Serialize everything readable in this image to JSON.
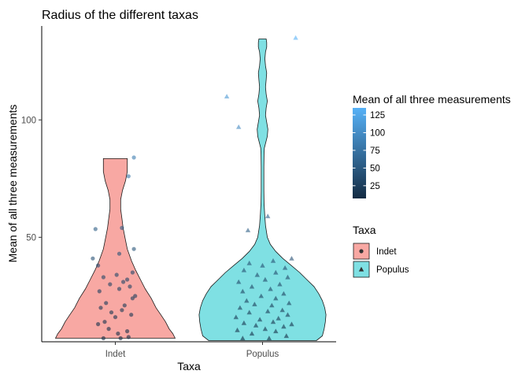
{
  "chart_data": {
    "type": "violin",
    "title": "Radius of the different taxas",
    "xlabel": "Taxa",
    "ylabel": "Mean of all three measurements",
    "categories": [
      "Indet",
      "Populus"
    ],
    "y_ticks": [
      50,
      100
    ],
    "ylim": [
      5.5,
      140
    ],
    "grid": false,
    "legend_position": "right",
    "colors": {
      "Indet": "#F8A8A3",
      "Populus": "#7FE0E3",
      "outline": "#1a1a1a",
      "gradient_low": "#132B43",
      "gradient_high": "#56B1F7"
    },
    "violins": [
      {
        "name": "Indet",
        "profile": [
          [
            7,
            1.0
          ],
          [
            9,
            0.96
          ],
          [
            11,
            0.9
          ],
          [
            14,
            0.84
          ],
          [
            17,
            0.76
          ],
          [
            20,
            0.68
          ],
          [
            24,
            0.6
          ],
          [
            28,
            0.5
          ],
          [
            32,
            0.42
          ],
          [
            36,
            0.34
          ],
          [
            40,
            0.27
          ],
          [
            45,
            0.2
          ],
          [
            50,
            0.16
          ],
          [
            54,
            0.13
          ],
          [
            58,
            0.11
          ],
          [
            62,
            0.09
          ],
          [
            66,
            0.09
          ],
          [
            70,
            0.12
          ],
          [
            74,
            0.17
          ],
          [
            78,
            0.2
          ],
          [
            81,
            0.2
          ],
          [
            83.5,
            0.2
          ]
        ]
      },
      {
        "name": "Populus",
        "profile": [
          [
            6,
            0.9
          ],
          [
            8,
            1.0
          ],
          [
            11,
            1.03
          ],
          [
            14,
            1.05
          ],
          [
            17,
            1.06
          ],
          [
            20,
            1.04
          ],
          [
            23,
            1.0
          ],
          [
            26,
            0.94
          ],
          [
            29,
            0.86
          ],
          [
            32,
            0.74
          ],
          [
            35,
            0.62
          ],
          [
            38,
            0.48
          ],
          [
            41,
            0.34
          ],
          [
            44,
            0.22
          ],
          [
            47,
            0.13
          ],
          [
            50,
            0.08
          ],
          [
            55,
            0.05
          ],
          [
            60,
            0.035
          ],
          [
            65,
            0.025
          ],
          [
            70,
            0.022
          ],
          [
            75,
            0.022
          ],
          [
            80,
            0.022
          ],
          [
            85,
            0.025
          ],
          [
            88,
            0.03
          ],
          [
            90,
            0.05
          ],
          [
            93,
            0.08
          ],
          [
            96,
            0.09
          ],
          [
            99,
            0.07
          ],
          [
            102,
            0.05
          ],
          [
            105,
            0.06
          ],
          [
            108,
            0.08
          ],
          [
            111,
            0.06
          ],
          [
            114,
            0.05
          ],
          [
            117,
            0.06
          ],
          [
            120,
            0.07
          ],
          [
            123,
            0.05
          ],
          [
            126,
            0.04
          ],
          [
            129,
            0.05
          ],
          [
            131,
            0.07
          ],
          [
            133,
            0.07
          ],
          [
            134.5,
            0.06
          ]
        ]
      }
    ],
    "points": [
      {
        "taxa": "Indet",
        "shape": "circle",
        "data": [
          [
            -0.09,
            7
          ],
          [
            0.04,
            7
          ],
          [
            0.1,
            7.5
          ],
          [
            0.02,
            9
          ],
          [
            0.09,
            10
          ],
          [
            -0.05,
            11
          ],
          [
            -0.13,
            13
          ],
          [
            -0.08,
            14
          ],
          [
            0.0,
            16
          ],
          [
            0.12,
            17
          ],
          [
            -0.03,
            18
          ],
          [
            0.05,
            19
          ],
          [
            -0.11,
            20
          ],
          [
            0.07,
            21
          ],
          [
            -0.07,
            22
          ],
          [
            0.13,
            24
          ],
          [
            0.15,
            25
          ],
          [
            -0.12,
            27
          ],
          [
            0.03,
            28
          ],
          [
            0.11,
            29
          ],
          [
            -0.04,
            30
          ],
          [
            0.06,
            31
          ],
          [
            0.09,
            32
          ],
          [
            -0.09,
            33
          ],
          [
            0.01,
            34
          ],
          [
            0.13,
            35
          ],
          [
            -0.13,
            38
          ],
          [
            -0.17,
            41
          ],
          [
            0.03,
            43
          ],
          [
            0.14,
            45
          ],
          [
            -0.15,
            53.5
          ],
          [
            0.05,
            54
          ],
          [
            0.1,
            76
          ],
          [
            0.14,
            84
          ]
        ]
      },
      {
        "taxa": "Populus",
        "shape": "triangle",
        "data": [
          [
            -0.15,
            7
          ],
          [
            0.05,
            7
          ],
          [
            0.18,
            8
          ],
          [
            -0.08,
            9
          ],
          [
            0.1,
            10
          ],
          [
            -0.19,
            10.5
          ],
          [
            0.02,
            11
          ],
          [
            0.16,
            12
          ],
          [
            -0.05,
            12.5
          ],
          [
            0.22,
            13
          ],
          [
            -0.14,
            13.5
          ],
          [
            0.08,
            14
          ],
          [
            -0.02,
            15
          ],
          [
            0.12,
            15.5
          ],
          [
            -0.2,
            16
          ],
          [
            0.19,
            17
          ],
          [
            -0.1,
            18
          ],
          [
            0.04,
            18.5
          ],
          [
            0.15,
            19
          ],
          [
            -0.17,
            20
          ],
          [
            0.07,
            21
          ],
          [
            -0.06,
            21.5
          ],
          [
            0.2,
            22
          ],
          [
            -0.12,
            23
          ],
          [
            0.1,
            24
          ],
          [
            -0.01,
            25
          ],
          [
            0.16,
            26
          ],
          [
            -0.15,
            27
          ],
          [
            0.06,
            28
          ],
          [
            -0.08,
            29
          ],
          [
            0.13,
            30
          ],
          [
            -0.18,
            31
          ],
          [
            0.02,
            32
          ],
          [
            0.19,
            33
          ],
          [
            -0.04,
            34
          ],
          [
            0.1,
            35
          ],
          [
            -0.14,
            36
          ],
          [
            0.17,
            37
          ],
          [
            0.0,
            38
          ],
          [
            -0.1,
            39
          ],
          [
            0.08,
            40
          ],
          [
            0.22,
            41
          ],
          [
            -0.11,
            53
          ],
          [
            0.04,
            59
          ],
          [
            -0.18,
            97
          ],
          [
            -0.27,
            110
          ],
          [
            0.25,
            135
          ]
        ]
      }
    ],
    "legend_colorbar": {
      "title": "Mean of all three measurements",
      "min": 7,
      "max": 135,
      "ticks": [
        25,
        50,
        75,
        100,
        125
      ]
    },
    "legend_taxa": {
      "title": "Taxa",
      "items": [
        {
          "label": "Indet",
          "shape": "circle"
        },
        {
          "label": "Populus",
          "shape": "triangle"
        }
      ]
    }
  }
}
